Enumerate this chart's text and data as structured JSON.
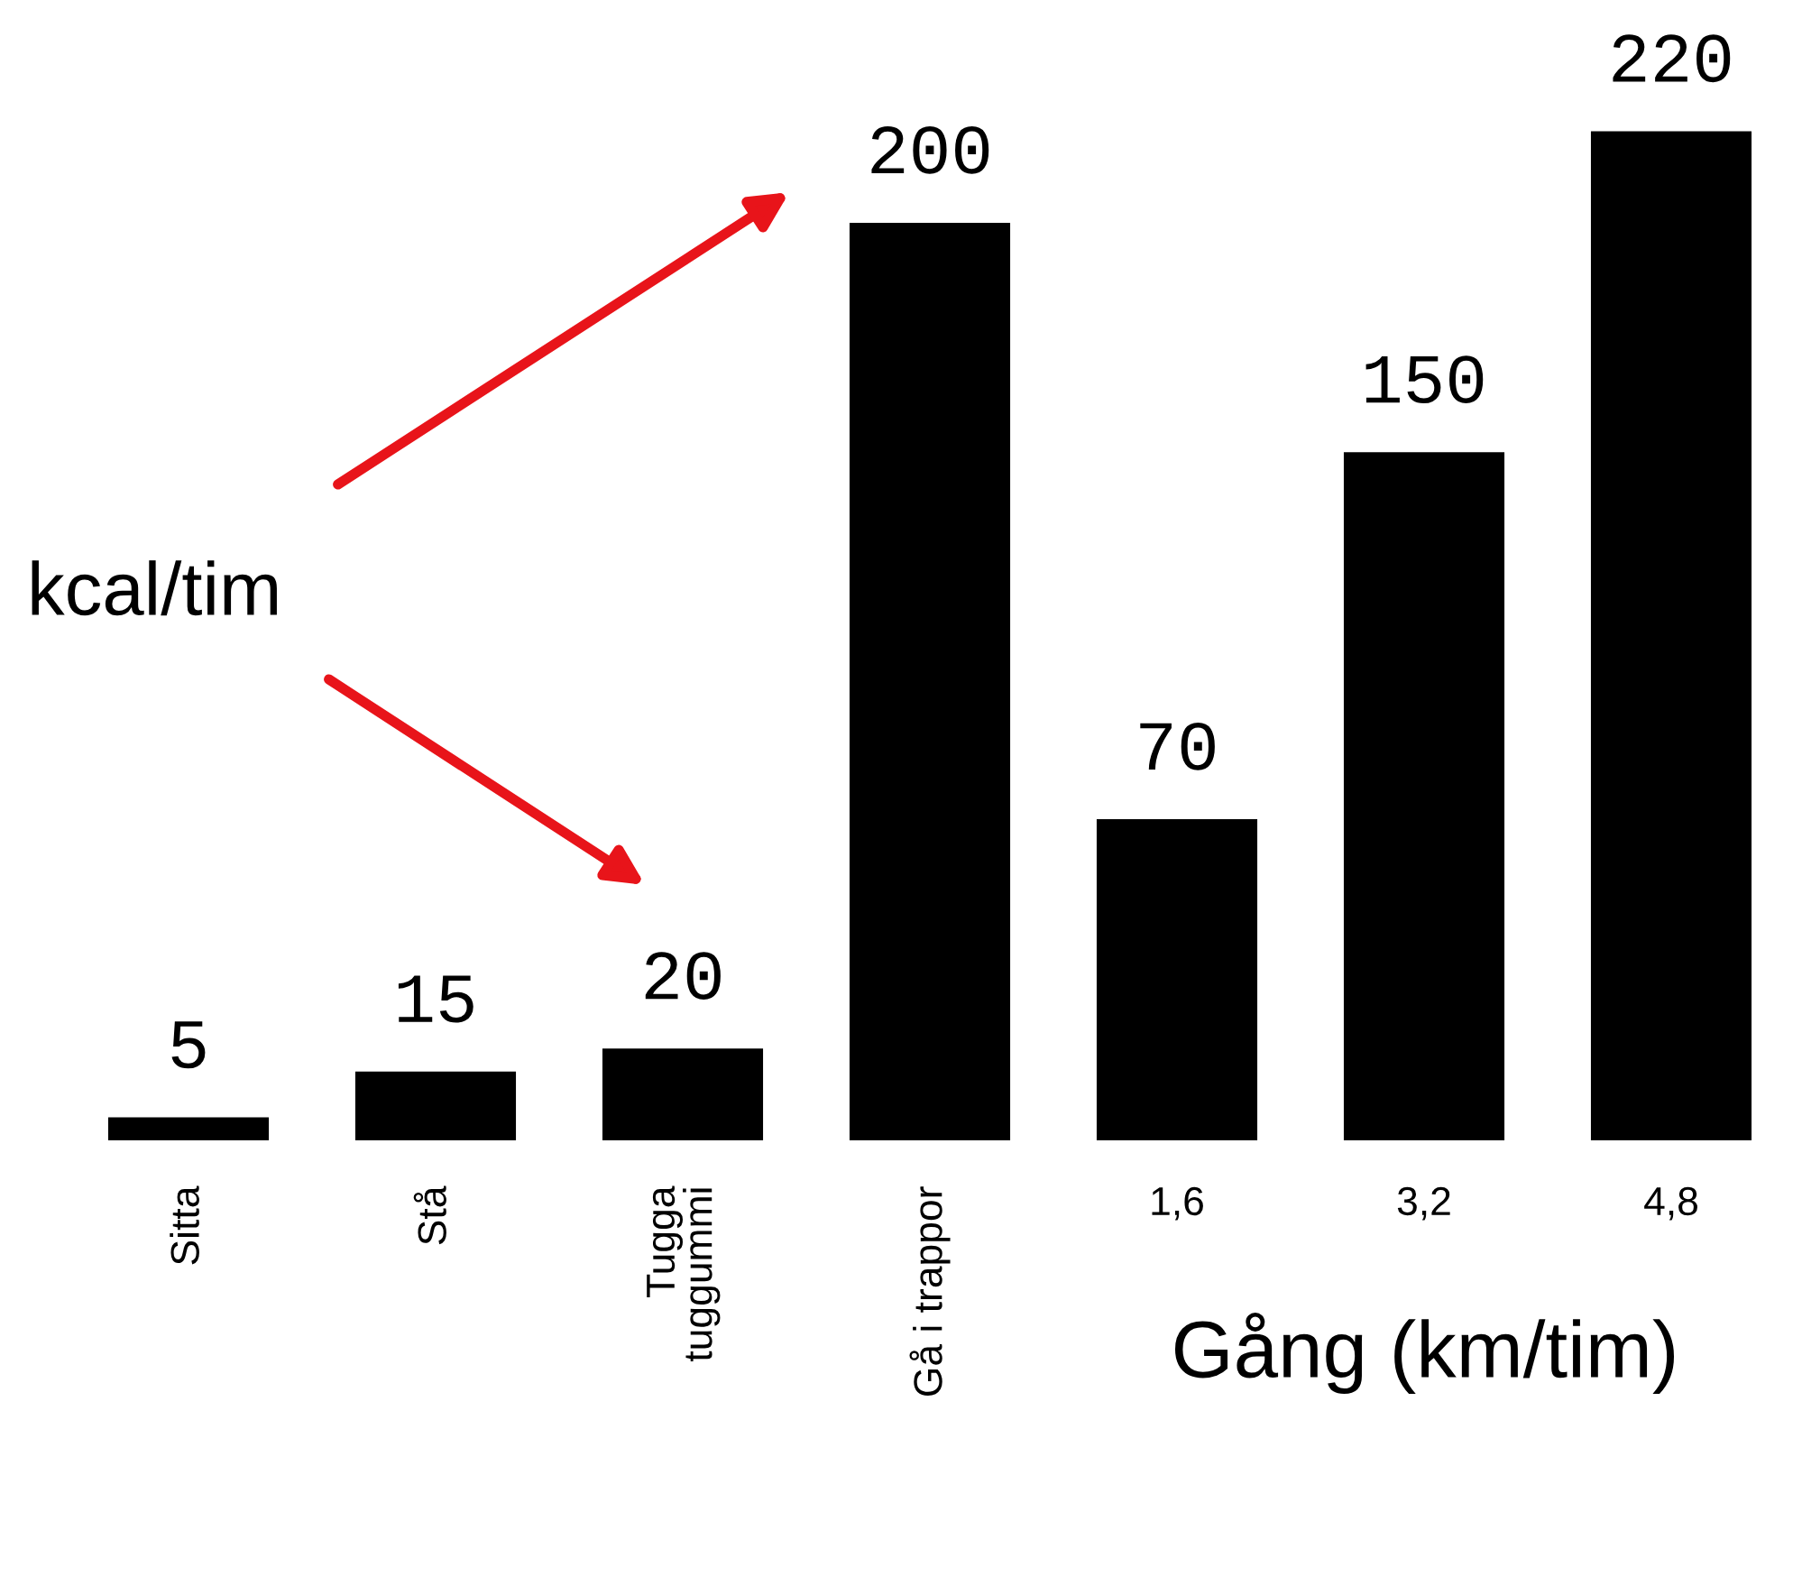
{
  "chart_data": {
    "type": "bar",
    "categories": [
      "Sitta",
      "Stå",
      "Tugga tuggummi",
      "Gå i trappor",
      "1,6",
      "3,2",
      "4,8"
    ],
    "values": [
      5,
      15,
      20,
      200,
      70,
      150,
      220
    ],
    "color": "#000000",
    "data_labels": true,
    "xlabel": "Gång (km/tim)",
    "annotations": [
      "kcal/tim"
    ],
    "legend": false
  }
}
